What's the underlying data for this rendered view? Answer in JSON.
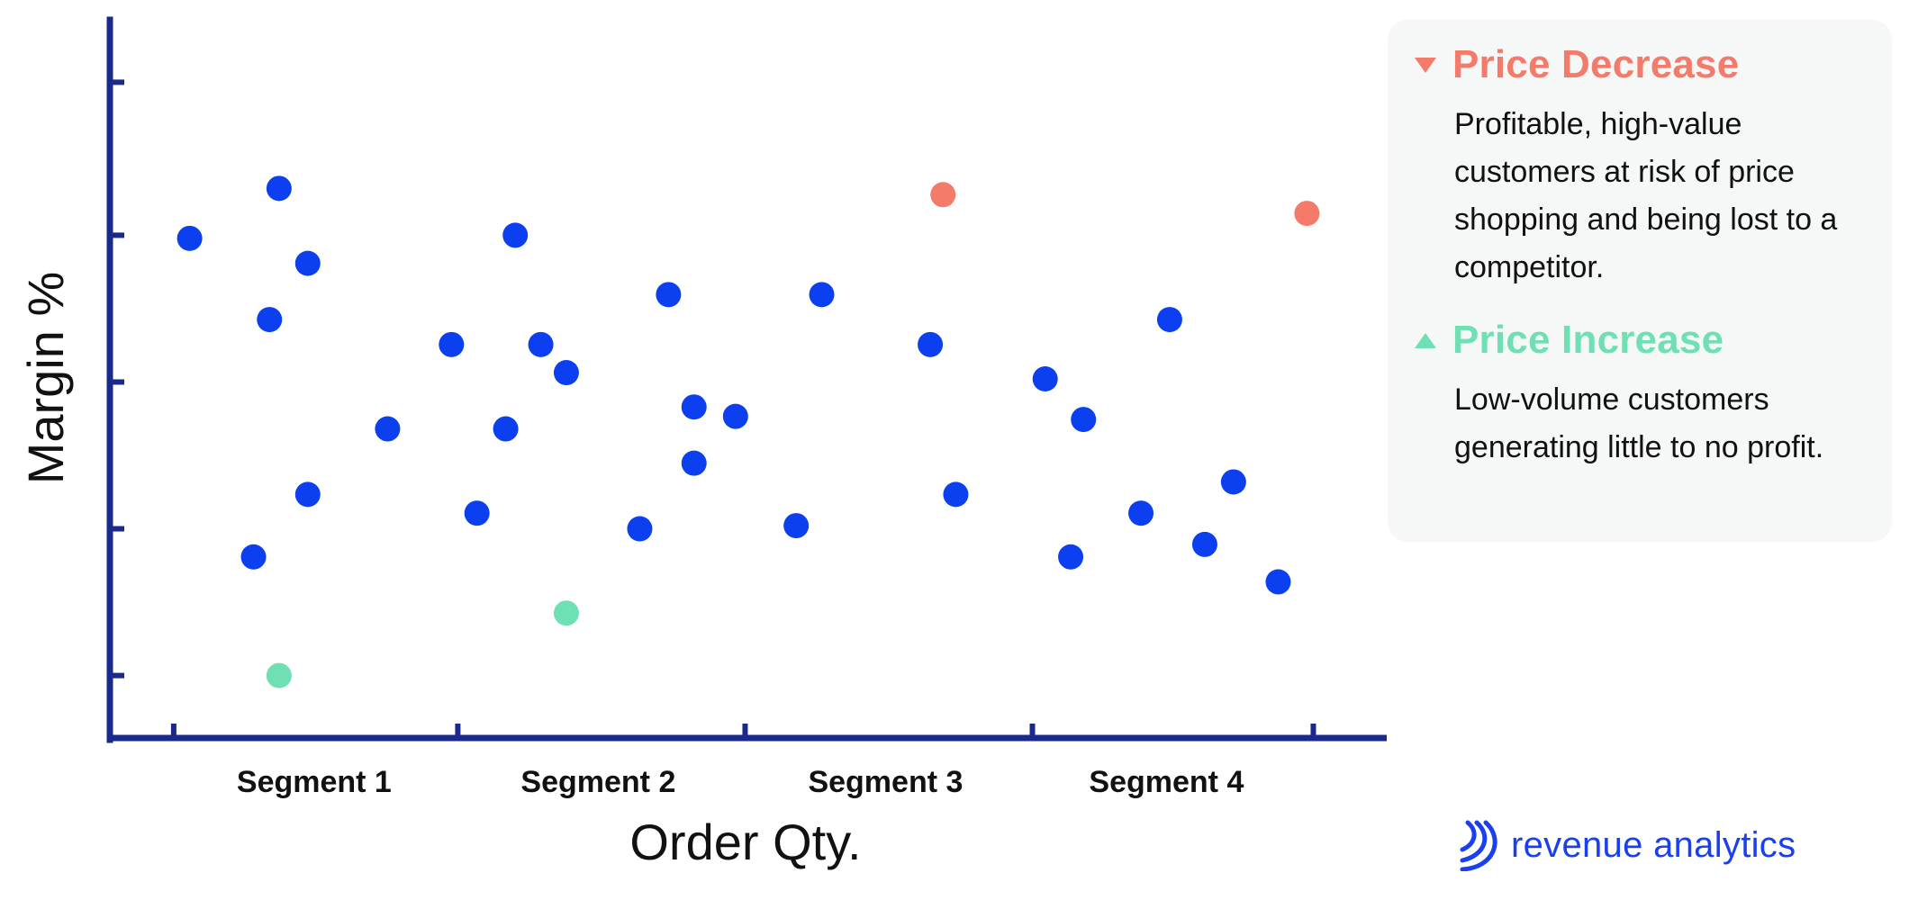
{
  "chart_data": {
    "type": "scatter",
    "title": "",
    "xlabel": "Order Qty.",
    "ylabel": "Margin %",
    "xlim": [
      0,
      20
    ],
    "ylim": [
      0,
      11.5
    ],
    "tick_labels_x": [
      "Segment 1",
      "Segment 2",
      "Segment 3",
      "Segment 4"
    ],
    "tick_labels_x_pos": [
      3.2,
      7.65,
      12.15,
      16.55
    ],
    "x_ticks": [
      1,
      5.45,
      9.95,
      14.45,
      18.85
    ],
    "y_ticks": [
      1,
      3.35,
      5.7,
      8.05,
      10.5
    ],
    "grid": false,
    "legend_position": "right",
    "colors": {
      "normal": "#0b3ff0",
      "decrease": "#f47a6a",
      "increase": "#6fdfb4",
      "axis": "#1a2a8c"
    },
    "points": [
      {
        "x": 1.25,
        "y": 8.0,
        "group": "normal"
      },
      {
        "x": 2.65,
        "y": 8.8,
        "group": "normal"
      },
      {
        "x": 2.5,
        "y": 6.7,
        "group": "normal"
      },
      {
        "x": 3.1,
        "y": 7.6,
        "group": "normal"
      },
      {
        "x": 3.1,
        "y": 3.9,
        "group": "normal"
      },
      {
        "x": 2.25,
        "y": 2.9,
        "group": "normal"
      },
      {
        "x": 4.35,
        "y": 4.95,
        "group": "normal"
      },
      {
        "x": 5.35,
        "y": 6.3,
        "group": "normal"
      },
      {
        "x": 6.35,
        "y": 8.05,
        "group": "normal"
      },
      {
        "x": 5.75,
        "y": 3.6,
        "group": "normal"
      },
      {
        "x": 6.2,
        "y": 4.95,
        "group": "normal"
      },
      {
        "x": 6.75,
        "y": 6.3,
        "group": "normal"
      },
      {
        "x": 7.15,
        "y": 5.85,
        "group": "normal"
      },
      {
        "x": 8.3,
        "y": 3.35,
        "group": "normal"
      },
      {
        "x": 8.75,
        "y": 7.1,
        "group": "normal"
      },
      {
        "x": 9.15,
        "y": 5.3,
        "group": "normal"
      },
      {
        "x": 9.15,
        "y": 4.4,
        "group": "normal"
      },
      {
        "x": 9.8,
        "y": 5.15,
        "group": "normal"
      },
      {
        "x": 10.75,
        "y": 3.4,
        "group": "normal"
      },
      {
        "x": 11.15,
        "y": 7.1,
        "group": "normal"
      },
      {
        "x": 12.85,
        "y": 6.3,
        "group": "normal"
      },
      {
        "x": 13.25,
        "y": 3.9,
        "group": "normal"
      },
      {
        "x": 14.65,
        "y": 5.75,
        "group": "normal"
      },
      {
        "x": 15.25,
        "y": 5.1,
        "group": "normal"
      },
      {
        "x": 15.05,
        "y": 2.9,
        "group": "normal"
      },
      {
        "x": 16.15,
        "y": 3.6,
        "group": "normal"
      },
      {
        "x": 16.6,
        "y": 6.7,
        "group": "normal"
      },
      {
        "x": 17.15,
        "y": 3.1,
        "group": "normal"
      },
      {
        "x": 17.6,
        "y": 4.1,
        "group": "normal"
      },
      {
        "x": 18.3,
        "y": 2.5,
        "group": "normal"
      },
      {
        "x": 13.05,
        "y": 8.7,
        "group": "decrease"
      },
      {
        "x": 18.75,
        "y": 8.4,
        "group": "decrease"
      },
      {
        "x": 2.65,
        "y": 1.0,
        "group": "increase"
      },
      {
        "x": 7.15,
        "y": 2.0,
        "group": "increase"
      }
    ]
  },
  "legend": {
    "decrease": {
      "icon": "triangle-down-icon",
      "color": "#f47a6a",
      "title": "Price Decrease",
      "description": "Profitable, high-value customers at risk of price shopping and being lost to a competitor."
    },
    "increase": {
      "icon": "triangle-up-icon",
      "color": "#6fdfb4",
      "title": "Price Increase",
      "description": "Low-volume customers generating little to no profit."
    }
  },
  "brand": {
    "name": "revenue analytics",
    "color": "#1a3ff0",
    "icon": "revenue-analytics-logo-icon"
  }
}
